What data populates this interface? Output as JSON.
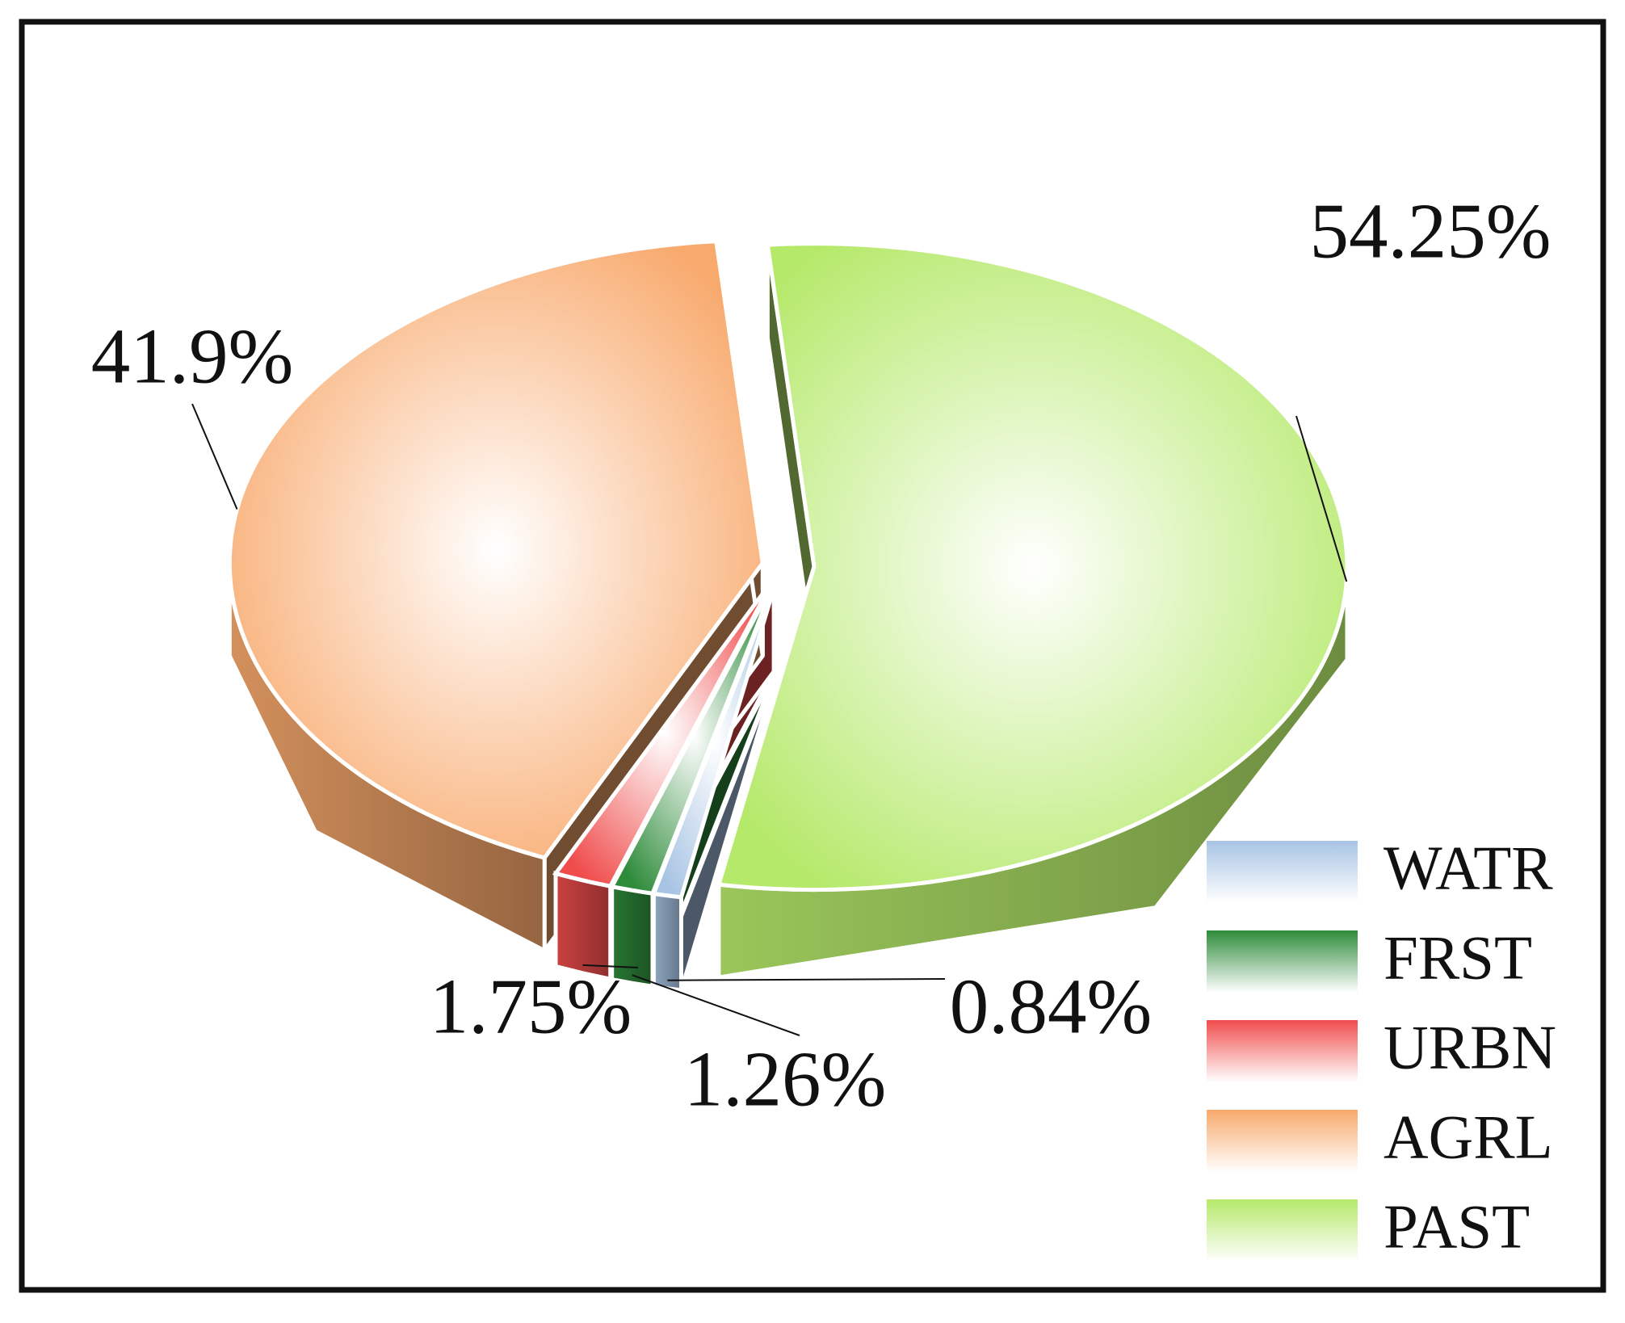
{
  "chart_data": {
    "type": "pie",
    "categories": [
      "WATR",
      "FRST",
      "URBN",
      "AGRL",
      "PAST"
    ],
    "values": [
      0.84,
      1.26,
      1.75,
      41.9,
      54.25
    ],
    "value_labels": [
      "0.84%",
      "1.26%",
      "1.75%",
      "41.9%",
      "54.25%"
    ],
    "colors": [
      "#a8c4e4",
      "#2e8b3a",
      "#f04c4c",
      "#f8a96c",
      "#b5e96a"
    ],
    "legend": "lower right"
  }
}
